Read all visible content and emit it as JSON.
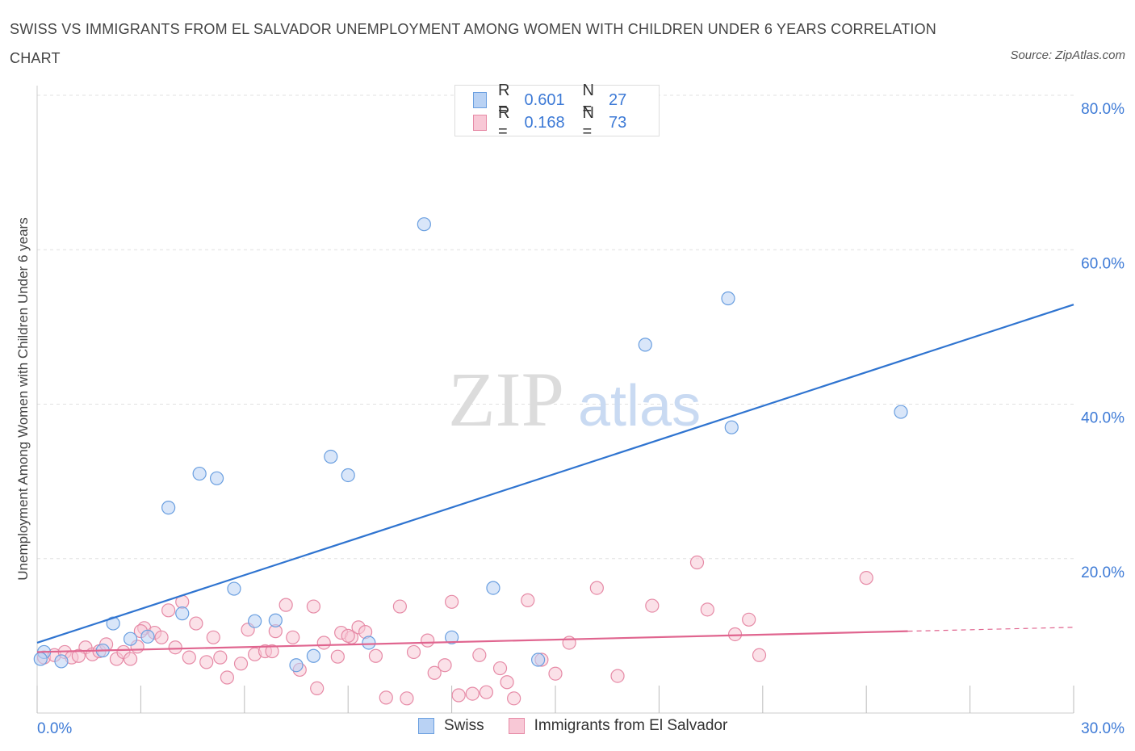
{
  "header": {
    "title": "SWISS VS IMMIGRANTS FROM EL SALVADOR UNEMPLOYMENT AMONG WOMEN WITH CHILDREN UNDER 6 YEARS CORRELATION CHART",
    "source": "Source: ZipAtlas.com"
  },
  "watermark": {
    "zip": "ZIP",
    "atlas": "atlas"
  },
  "legend": {
    "rows": [
      {
        "r_label": "R = ",
        "r_value": "0.601",
        "n_label": "N = ",
        "n_value": "27"
      },
      {
        "r_label": "R = ",
        "r_value": "0.168",
        "n_label": "N = ",
        "n_value": "73"
      }
    ]
  },
  "colors": {
    "swiss_fill": "#b9d2f4",
    "swiss_stroke": "#6a9fe0",
    "swiss_line": "#2f74d0",
    "salv_fill": "#f8c8d6",
    "salv_stroke": "#e68aa6",
    "salv_line": "#e0658f",
    "grid": "#e0e0e0",
    "axis_text": "#3d7ad6"
  },
  "chart_data": {
    "type": "scatter",
    "title": "SWISS VS IMMIGRANTS FROM EL SALVADOR UNEMPLOYMENT AMONG WOMEN WITH CHILDREN UNDER 6 YEARS CORRELATION CHART",
    "xlabel": "",
    "ylabel": "Unemployment Among Women with Children Under 6 years",
    "xlim": [
      0,
      30
    ],
    "ylim": [
      0,
      80
    ],
    "x_tick_labels": [
      "0.0%",
      "30.0%"
    ],
    "y_tick_labels": [
      "20.0%",
      "40.0%",
      "60.0%",
      "80.0%"
    ],
    "y_ticks": [
      20,
      40,
      60,
      80
    ],
    "grid": true,
    "legend_position": "top-center",
    "series": [
      {
        "name": "Swiss",
        "R": 0.601,
        "N": 27,
        "trend": {
          "x": [
            0,
            30
          ],
          "y": [
            9.1,
            52.9
          ]
        },
        "points": [
          [
            0.2,
            7.9
          ],
          [
            0.7,
            6.7
          ],
          [
            1.9,
            8.1
          ],
          [
            2.2,
            11.6
          ],
          [
            2.7,
            9.6
          ],
          [
            3.2,
            9.9
          ],
          [
            3.8,
            26.6
          ],
          [
            4.2,
            12.9
          ],
          [
            4.7,
            31.0
          ],
          [
            5.2,
            30.4
          ],
          [
            5.7,
            16.1
          ],
          [
            6.3,
            11.9
          ],
          [
            6.9,
            12.0
          ],
          [
            7.5,
            6.2
          ],
          [
            8.0,
            7.4
          ],
          [
            8.5,
            33.2
          ],
          [
            9.0,
            30.8
          ],
          [
            9.6,
            9.1
          ],
          [
            11.2,
            63.3
          ],
          [
            12.0,
            9.8
          ],
          [
            13.2,
            16.2
          ],
          [
            14.5,
            6.9
          ],
          [
            17.6,
            47.7
          ],
          [
            20.0,
            53.7
          ],
          [
            20.1,
            37.0
          ],
          [
            25.0,
            39.0
          ],
          [
            0.1,
            7.0
          ]
        ]
      },
      {
        "name": "Immigrants from El Salvador",
        "R": 0.168,
        "N": 73,
        "trend": {
          "x": [
            0,
            25.2
          ],
          "y": [
            7.9,
            10.6
          ]
        },
        "trend_dashed": {
          "x": [
            25.2,
            30
          ],
          "y": [
            10.6,
            11.1
          ]
        },
        "points": [
          [
            0.2,
            7.2
          ],
          [
            0.5,
            7.5
          ],
          [
            0.8,
            7.9
          ],
          [
            1.0,
            7.2
          ],
          [
            1.4,
            8.5
          ],
          [
            1.6,
            7.6
          ],
          [
            1.8,
            8.0
          ],
          [
            2.0,
            8.9
          ],
          [
            2.3,
            7.0
          ],
          [
            2.5,
            7.9
          ],
          [
            2.7,
            7.0
          ],
          [
            2.9,
            8.6
          ],
          [
            3.1,
            11.0
          ],
          [
            3.4,
            10.4
          ],
          [
            3.6,
            9.8
          ],
          [
            3.8,
            13.3
          ],
          [
            4.0,
            8.5
          ],
          [
            4.2,
            14.4
          ],
          [
            4.4,
            7.2
          ],
          [
            4.6,
            11.6
          ],
          [
            4.9,
            6.6
          ],
          [
            5.1,
            9.8
          ],
          [
            5.3,
            7.2
          ],
          [
            5.5,
            4.6
          ],
          [
            5.9,
            6.4
          ],
          [
            6.1,
            10.8
          ],
          [
            6.3,
            7.6
          ],
          [
            6.6,
            8.0
          ],
          [
            6.9,
            10.6
          ],
          [
            7.2,
            14.0
          ],
          [
            7.4,
            9.8
          ],
          [
            7.6,
            5.6
          ],
          [
            8.0,
            13.8
          ],
          [
            8.1,
            3.2
          ],
          [
            8.3,
            9.1
          ],
          [
            8.7,
            7.3
          ],
          [
            8.8,
            10.4
          ],
          [
            9.1,
            9.8
          ],
          [
            9.3,
            11.1
          ],
          [
            9.5,
            10.5
          ],
          [
            9.8,
            7.4
          ],
          [
            10.1,
            2.0
          ],
          [
            10.5,
            13.8
          ],
          [
            10.7,
            1.9
          ],
          [
            10.9,
            7.9
          ],
          [
            11.3,
            9.4
          ],
          [
            11.5,
            5.2
          ],
          [
            11.8,
            6.2
          ],
          [
            12.0,
            14.4
          ],
          [
            12.2,
            2.3
          ],
          [
            12.6,
            2.5
          ],
          [
            12.8,
            7.5
          ],
          [
            13.0,
            2.7
          ],
          [
            13.4,
            5.8
          ],
          [
            13.6,
            4.0
          ],
          [
            13.8,
            1.9
          ],
          [
            14.2,
            14.6
          ],
          [
            14.6,
            6.9
          ],
          [
            15.0,
            5.1
          ],
          [
            15.4,
            9.1
          ],
          [
            16.2,
            16.2
          ],
          [
            16.8,
            4.8
          ],
          [
            17.8,
            13.9
          ],
          [
            19.1,
            19.5
          ],
          [
            19.4,
            13.4
          ],
          [
            20.2,
            10.2
          ],
          [
            20.6,
            12.1
          ],
          [
            20.9,
            7.5
          ],
          [
            24.0,
            17.5
          ],
          [
            1.2,
            7.4
          ],
          [
            3.0,
            10.6
          ],
          [
            6.8,
            8.0
          ],
          [
            9.0,
            10.0
          ]
        ]
      }
    ]
  },
  "bottom_legend": {
    "items": [
      "Swiss",
      "Immigrants from El Salvador"
    ]
  }
}
